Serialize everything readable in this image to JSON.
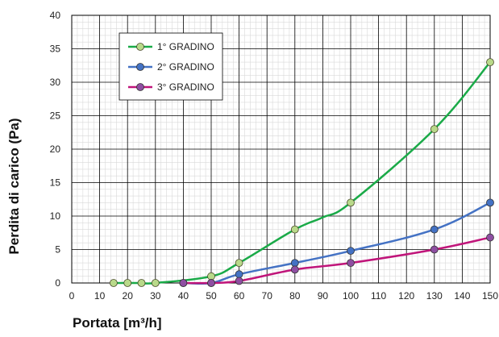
{
  "chart_data": {
    "type": "line",
    "xlabel": "Portata [m³/h]",
    "ylabel": "Perdita di carico  (Pa)",
    "xlim": [
      0,
      150
    ],
    "ylim": [
      0,
      40
    ],
    "x_ticks": [
      "0",
      "10",
      "20",
      "30",
      "40",
      "50",
      "60",
      "70",
      "80",
      "90",
      "100",
      "110",
      "120",
      "130",
      "140",
      "150"
    ],
    "y_ticks": [
      "0",
      "5",
      "10",
      "15",
      "20",
      "25",
      "30",
      "35",
      "40"
    ],
    "grid": true,
    "legend_position": "top-left",
    "series": [
      {
        "name": "1° GRADINO",
        "color": "#1aaa48",
        "marker_fill": "#b9d98a",
        "x": [
          15,
          20,
          25,
          30,
          50,
          60,
          80,
          90,
          100,
          130,
          150
        ],
        "y": [
          0,
          0,
          0,
          0,
          1,
          3,
          8,
          9.8,
          12,
          23,
          33
        ]
      },
      {
        "name": "2° GRADINO",
        "color": "#4472c4",
        "marker_fill": "#4472c4",
        "x": [
          40,
          50,
          60,
          80,
          100,
          130,
          150
        ],
        "y": [
          0,
          0,
          1.3,
          3,
          4.8,
          8,
          12
        ]
      },
      {
        "name": "3° GRADINO",
        "color": "#c0157a",
        "marker_fill": "#8e4fa2",
        "x": [
          40,
          50,
          60,
          80,
          100,
          130,
          150
        ],
        "y": [
          0,
          0,
          0.3,
          2,
          3,
          5,
          6.8
        ]
      }
    ]
  }
}
